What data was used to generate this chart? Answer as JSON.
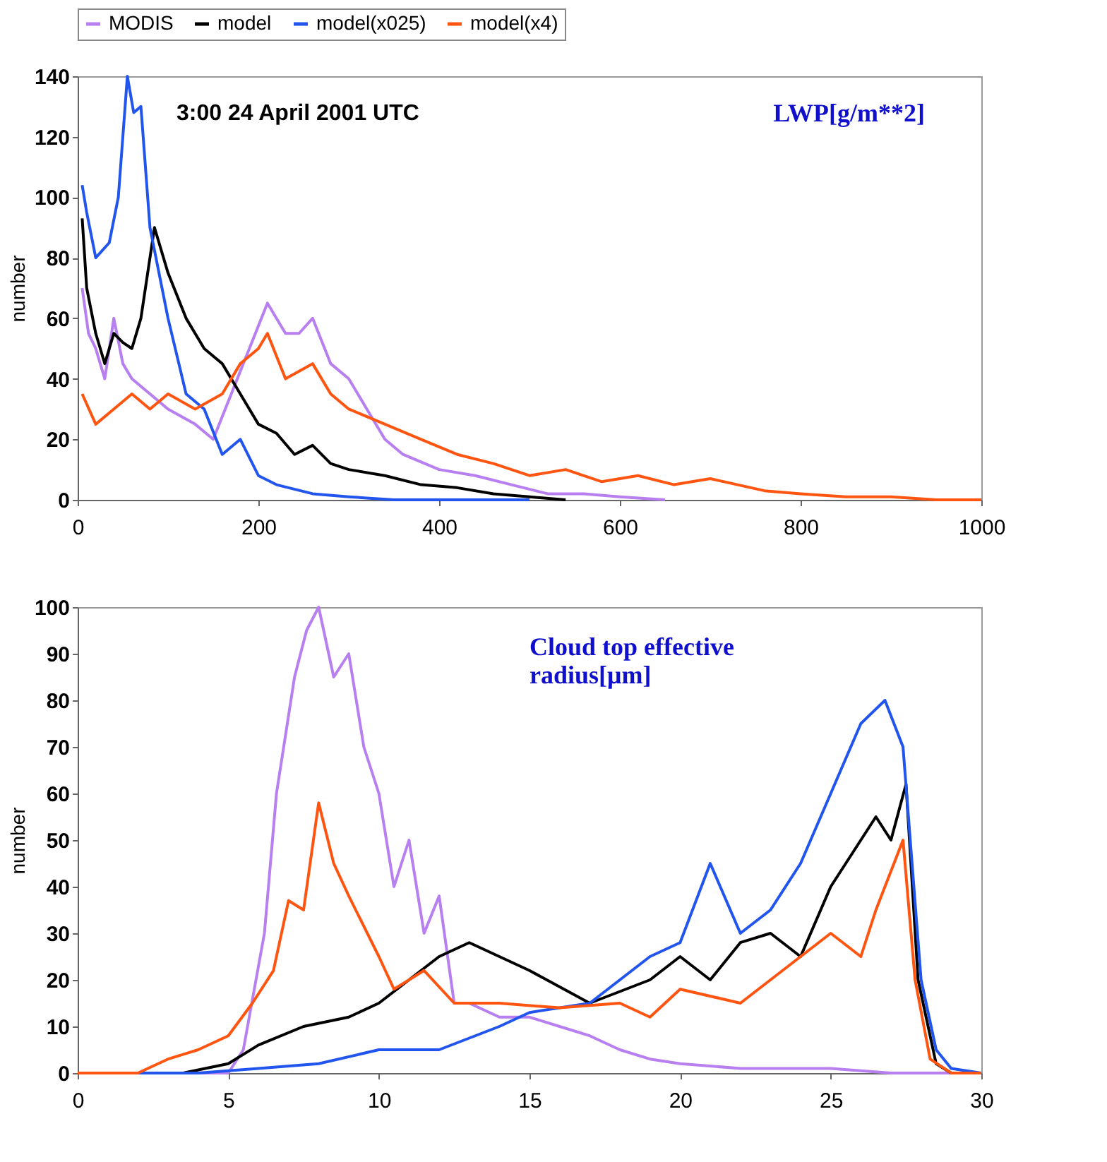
{
  "chart_data": [
    {
      "type": "line",
      "ylabel": "number",
      "legend": "top",
      "grid": false,
      "line_style": "solid",
      "xlim": [
        0,
        1000
      ],
      "xticks": [
        0,
        200,
        400,
        600,
        800,
        1000
      ],
      "ylim": [
        0,
        140
      ],
      "yticks": [
        0,
        20,
        40,
        60,
        80,
        100,
        120,
        140
      ],
      "annotations": [
        "3:00 24 April 2001 UTC",
        "LWP[g/m**2]"
      ],
      "series": [
        {
          "name": "MODIS",
          "color": "#b77ff0",
          "x": [
            5,
            12,
            20,
            30,
            40,
            50,
            60,
            80,
            100,
            130,
            150,
            170,
            190,
            210,
            230,
            245,
            260,
            280,
            300,
            320,
            340,
            360,
            400,
            440,
            480,
            520,
            560,
            600,
            650
          ],
          "values": [
            70,
            55,
            50,
            40,
            60,
            45,
            40,
            35,
            30,
            25,
            20,
            35,
            50,
            65,
            55,
            55,
            60,
            45,
            40,
            30,
            20,
            15,
            10,
            8,
            5,
            2,
            2,
            1,
            0
          ]
        },
        {
          "name": "model",
          "color": "#000000",
          "x": [
            5,
            10,
            20,
            30,
            40,
            50,
            60,
            70,
            85,
            100,
            120,
            140,
            160,
            180,
            200,
            220,
            240,
            260,
            280,
            300,
            340,
            380,
            420,
            460,
            500,
            540
          ],
          "values": [
            93,
            70,
            55,
            45,
            55,
            52,
            50,
            60,
            90,
            75,
            60,
            50,
            45,
            35,
            25,
            22,
            15,
            18,
            12,
            10,
            8,
            5,
            4,
            2,
            1,
            0
          ]
        },
        {
          "name": "model(x025)",
          "color": "#2255ee",
          "x": [
            5,
            10,
            20,
            35,
            45,
            55,
            62,
            70,
            80,
            100,
            120,
            140,
            160,
            180,
            200,
            220,
            260,
            300,
            350,
            400,
            500
          ],
          "values": [
            104,
            95,
            80,
            85,
            100,
            140,
            128,
            130,
            90,
            60,
            35,
            30,
            15,
            20,
            8,
            5,
            2,
            1,
            0,
            0,
            0
          ]
        },
        {
          "name": "model(x4)",
          "color": "#ff5511",
          "x": [
            5,
            20,
            40,
            60,
            80,
            100,
            130,
            160,
            180,
            200,
            210,
            230,
            260,
            280,
            300,
            340,
            380,
            420,
            460,
            500,
            540,
            580,
            620,
            660,
            700,
            760,
            800,
            850,
            900,
            950,
            1000
          ],
          "values": [
            35,
            25,
            30,
            35,
            30,
            35,
            30,
            35,
            45,
            50,
            55,
            40,
            45,
            35,
            30,
            25,
            20,
            15,
            12,
            8,
            10,
            6,
            8,
            5,
            7,
            3,
            2,
            1,
            1,
            0,
            0
          ]
        }
      ]
    },
    {
      "type": "line",
      "ylabel": "number",
      "legend": false,
      "grid": false,
      "line_style": "solid",
      "xlim": [
        0,
        30
      ],
      "xticks": [
        0,
        5,
        10,
        15,
        20,
        25,
        30
      ],
      "ylim": [
        0,
        100
      ],
      "yticks": [
        0,
        10,
        20,
        30,
        40,
        50,
        60,
        70,
        80,
        90,
        100
      ],
      "annotations": [
        "Cloud top effective\nradius[μm]"
      ],
      "series": [
        {
          "name": "MODIS",
          "color": "#b77ff0",
          "x": [
            0,
            5,
            5.5,
            6.2,
            6.6,
            7.2,
            7.6,
            8,
            8.5,
            9,
            9.5,
            10,
            10.5,
            11,
            11.5,
            12,
            12.5,
            13,
            14,
            15,
            16,
            17,
            18,
            19,
            20,
            22,
            25,
            27,
            30
          ],
          "values": [
            0,
            0,
            5,
            30,
            60,
            85,
            95,
            100,
            85,
            90,
            70,
            60,
            40,
            50,
            30,
            38,
            15,
            15,
            12,
            12,
            10,
            8,
            5,
            3,
            2,
            1,
            1,
            0,
            0
          ]
        },
        {
          "name": "model",
          "color": "#000000",
          "x": [
            0,
            3.5,
            5,
            6,
            7.5,
            9,
            10,
            11,
            12,
            13,
            14,
            15,
            17,
            19,
            20,
            21,
            22,
            23,
            24,
            25,
            26,
            26.5,
            27,
            27.5,
            27.9,
            28.5,
            29,
            30
          ],
          "values": [
            0,
            0,
            2,
            6,
            10,
            12,
            15,
            20,
            25,
            28,
            25,
            22,
            15,
            20,
            25,
            20,
            28,
            30,
            25,
            40,
            50,
            55,
            50,
            62,
            20,
            2,
            0,
            0
          ]
        },
        {
          "name": "model(x025)",
          "color": "#2255ee",
          "x": [
            0,
            4,
            6,
            8,
            10,
            12,
            14,
            15,
            17,
            18,
            19,
            20,
            21,
            22,
            23,
            24,
            25,
            26,
            26.8,
            27.4,
            28,
            28.5,
            29,
            30
          ],
          "values": [
            0,
            0,
            1,
            2,
            5,
            5,
            10,
            13,
            15,
            20,
            25,
            28,
            45,
            30,
            35,
            45,
            60,
            75,
            80,
            70,
            20,
            5,
            1,
            0
          ]
        },
        {
          "name": "model(x4)",
          "color": "#ff5511",
          "x": [
            0,
            2,
            3,
            4,
            5,
            5.8,
            6.5,
            7,
            7.5,
            8,
            8.5,
            9,
            10,
            10.5,
            11.5,
            12.5,
            14,
            16,
            18,
            19,
            20,
            22,
            23,
            24,
            25,
            26,
            26.5,
            27.4,
            27.8,
            28.3,
            29,
            30
          ],
          "values": [
            0,
            0,
            3,
            5,
            8,
            15,
            22,
            37,
            35,
            58,
            45,
            38,
            25,
            18,
            22,
            15,
            15,
            14,
            15,
            12,
            18,
            15,
            20,
            25,
            30,
            25,
            35,
            50,
            20,
            3,
            0,
            0
          ]
        }
      ]
    }
  ]
}
